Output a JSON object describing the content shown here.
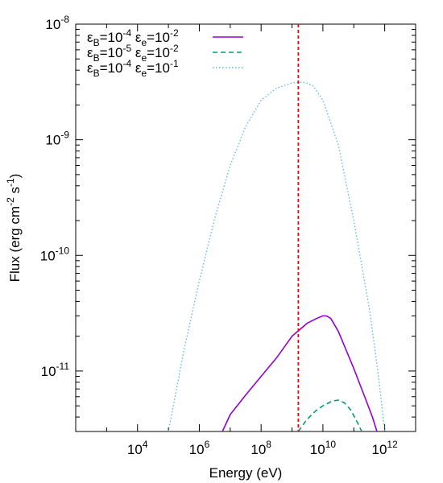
{
  "chart_data": {
    "type": "line",
    "xlabel": "Energy (eV)",
    "ylabel": "Flux (erg cm^-2 s^-1)",
    "ylabel_parts": {
      "prefix": "Flux (erg cm",
      "exp1": "-2",
      "mid": " s",
      "exp2": "-1",
      "suffix": ")"
    },
    "x_scale": "log",
    "y_scale": "log",
    "xlim": [
      100,
      10000000000000.0
    ],
    "ylim": [
      3e-12,
      1e-08
    ],
    "grid": false,
    "legend_position": "top-left",
    "x_ticks": [
      {
        "value": 10000.0,
        "base": "10",
        "exp": "4"
      },
      {
        "value": 1000000.0,
        "base": "10",
        "exp": "6"
      },
      {
        "value": 100000000.0,
        "base": "10",
        "exp": "8"
      },
      {
        "value": 10000000000.0,
        "base": "10",
        "exp": "10"
      },
      {
        "value": 1000000000000.0,
        "base": "10",
        "exp": "12"
      }
    ],
    "y_ticks": [
      {
        "value": 1e-08,
        "base": "10",
        "exp": "-8"
      },
      {
        "value": 1e-09,
        "base": "10",
        "exp": "-9"
      },
      {
        "value": 1e-10,
        "base": "10",
        "exp": "-10"
      },
      {
        "value": 1e-11,
        "base": "10",
        "exp": "-11"
      }
    ],
    "vertical_line": {
      "x": 1600000000.0,
      "color": "#ff0000",
      "style": "dashed"
    },
    "series": [
      {
        "legend": {
          "b_sub": "B",
          "b_exp": "-4",
          "e_sub": "e",
          "e_exp": "-2"
        },
        "color": "#9400d3",
        "style": "solid",
        "x": [
          5600000.0,
          10000000.0,
          31600000.0,
          100000000.0,
          316000000.0,
          1000000000.0,
          3160000000.0,
          6300000000.0,
          10000000000.0,
          13000000000.0,
          18000000000.0,
          31600000000.0,
          100000000000.0,
          200000000000.0,
          400000000000.0,
          560000000000.0
        ],
        "y": [
          3e-12,
          4.2e-12,
          6.2e-12,
          9e-12,
          1.3e-11,
          2e-11,
          2.6e-11,
          2.85e-11,
          3e-11,
          3e-11,
          2.85e-11,
          2.2e-11,
          1.05e-11,
          6.5e-12,
          4e-12,
          3e-12
        ]
      },
      {
        "legend": {
          "b_sub": "B",
          "b_exp": "-5",
          "e_sub": "e",
          "e_exp": "-2"
        },
        "color": "#009e73",
        "style": "dashed",
        "x": [
          1600000000.0,
          3000000000.0,
          6300000000.0,
          10000000000.0,
          20000000000.0,
          31600000000.0,
          50000000000.0,
          80000000000.0,
          130000000000.0,
          180000000000.0
        ],
        "y": [
          3e-12,
          3.8e-12,
          4.6e-12,
          5e-12,
          5.5e-12,
          5.6e-12,
          5.3e-12,
          4.6e-12,
          3.6e-12,
          3e-12
        ]
      },
      {
        "legend": {
          "b_sub": "B",
          "b_exp": "-4",
          "e_sub": "e",
          "e_exp": "-1"
        },
        "color": "#56b4e9",
        "style": "dotted",
        "x": [
          100000.0,
          316000.0,
          1000000.0,
          3160000.0,
          10000000.0,
          31600000.0,
          100000000.0,
          316000000.0,
          1000000000.0,
          2000000000.0,
          3000000000.0,
          5000000000.0,
          10000000000.0,
          31600000000.0,
          100000000000.0,
          316000000000.0,
          600000000000.0,
          1000000000000.0
        ],
        "y": [
          3e-12,
          1.5e-11,
          6e-11,
          2.1e-10,
          6e-10,
          1.3e-09,
          2.2e-09,
          2.8e-09,
          3.1e-09,
          3.15e-09,
          3.1e-09,
          2.9e-09,
          2.2e-09,
          9e-10,
          2e-10,
          3.5e-11,
          1e-11,
          3e-12
        ]
      }
    ]
  }
}
